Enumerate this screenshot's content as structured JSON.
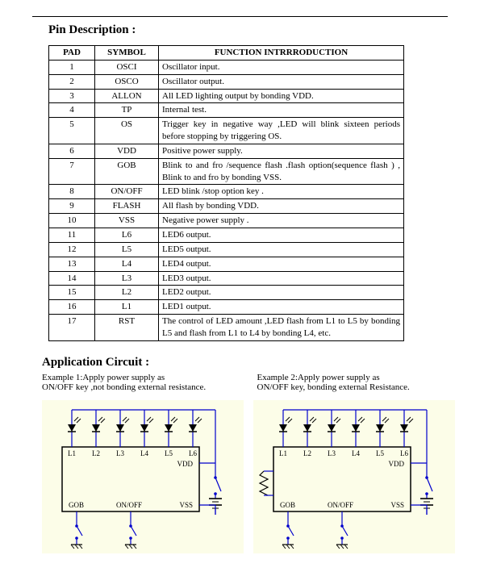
{
  "headings": {
    "pin_description": "Pin Description :",
    "app_circuit": "Application Circuit :"
  },
  "table": {
    "headers": {
      "pad": "PAD",
      "symbol": "SYMBOL",
      "function": "FUNCTION    INTRRRODUCTION"
    },
    "rows": [
      {
        "pad": "1",
        "symbol": "OSCI",
        "func": "Oscillator    input."
      },
      {
        "pad": "2",
        "symbol": "OSCO",
        "func": "Oscillator    output."
      },
      {
        "pad": "3",
        "symbol": "ALLON",
        "func": "All    LED lighting output by bonding VDD."
      },
      {
        "pad": "4",
        "symbol": "TP",
        "func": "Internal    test."
      },
      {
        "pad": "5",
        "symbol": "OS",
        "func": "Trigger key in negative way ,LED will blink sixteen periods before stopping by triggering OS.",
        "justify": true
      },
      {
        "pad": "6",
        "symbol": "VDD",
        "func": "Positive power supply."
      },
      {
        "pad": "7",
        "symbol": "GOB",
        "func": "Blink  to  and  fro  /sequence  flash  .flash  option(sequence flash ) , Blink to and fro by bonding VSS.",
        "justify": true
      },
      {
        "pad": "8",
        "symbol": "ON/OFF",
        "func": "LED blink /stop option key ."
      },
      {
        "pad": "9",
        "symbol": "FLASH",
        "func": "All flash by bonding VDD."
      },
      {
        "pad": "10",
        "symbol": "VSS",
        "func": "Negative power supply ."
      },
      {
        "pad": "11",
        "symbol": "L6",
        "func": "LED6    output."
      },
      {
        "pad": "12",
        "symbol": "L5",
        "func": "LED5    output."
      },
      {
        "pad": "13",
        "symbol": "L4",
        "func": "LED4    output."
      },
      {
        "pad": "14",
        "symbol": "L3",
        "func": "LED3    output."
      },
      {
        "pad": "15",
        "symbol": "L2",
        "func": "LED2    output."
      },
      {
        "pad": "16",
        "symbol": "L1",
        "func": "LED1    output."
      },
      {
        "pad": "17",
        "symbol": "RST",
        "func": "The control of LED amount ,LED flash from L1 to L5 by bonding L5 and flash from L1 to L4 by bonding L4, etc.",
        "justify": true
      }
    ]
  },
  "examples": {
    "ex1_line1": "Example 1:Apply power supply as",
    "ex1_line2": "ON/OFF key ,not bonding external resistance.",
    "ex2_line1": "Example 2:Apply power supply as",
    "ex2_line2": "ON/OFF key, bonding external Resistance."
  },
  "circuit": {
    "pins_top": [
      "L1",
      "L2",
      "L3",
      "L4",
      "L5",
      "L6"
    ],
    "vdd": "VDD",
    "gob": "GOB",
    "onoff": "ON/OFF",
    "vss": "VSS",
    "colors": {
      "bg": "#fcfde8",
      "wire_blue": "#0000cc",
      "chip_border": "#000000",
      "text": "#000000"
    }
  }
}
